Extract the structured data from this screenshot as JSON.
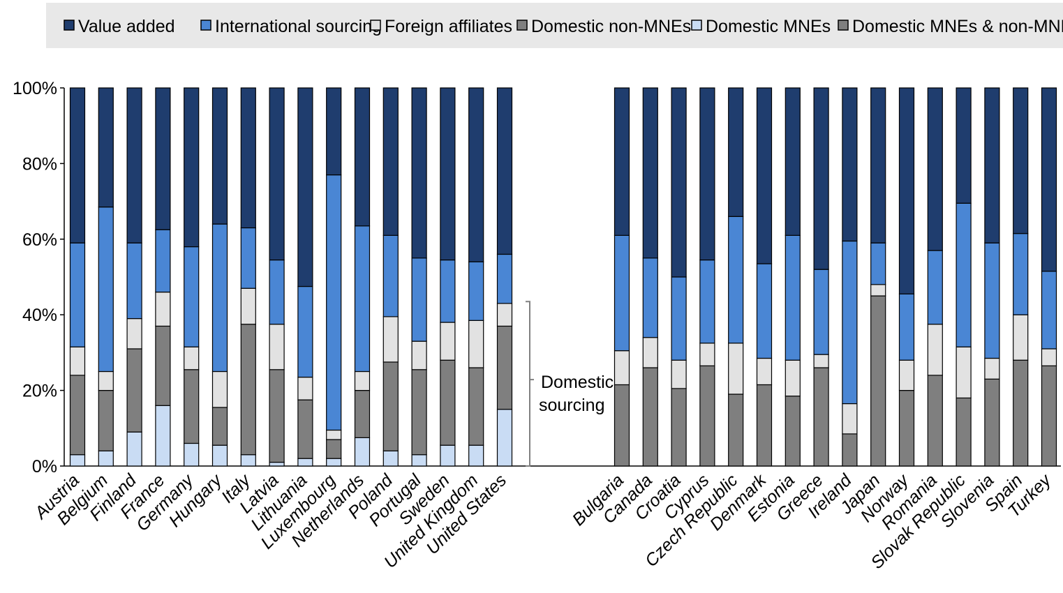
{
  "chart_data": {
    "type": "bar",
    "stacked": true,
    "percent": true,
    "ylim": [
      0,
      100
    ],
    "yticks": [
      "0%",
      "20%",
      "40%",
      "60%",
      "80%",
      "100%"
    ],
    "grid": false,
    "legend_position": "top",
    "series": [
      {
        "name": "Value added",
        "color": "#1f3d6e"
      },
      {
        "name": "International sourcing",
        "color": "#4a86d4"
      },
      {
        "name": "Foreign affiliates",
        "color": "#e2e2e2"
      },
      {
        "name": "Domestic non-MNEs",
        "color": "#7f7f7f"
      },
      {
        "name": "Domestic MNEs",
        "color": "#c9dcf4"
      },
      {
        "name": "Domestic MNEs & non-MNEs",
        "color": "#7f7f7f"
      }
    ],
    "groups": [
      {
        "categories": [
          "Austria",
          "Belgium",
          "Finland",
          "France",
          "Germany",
          "Hungary",
          "Italy",
          "Latvia",
          "Lithuania",
          "Luxembourg",
          "Netherlands",
          "Poland",
          "Portugal",
          "Sweden",
          "United Kingdom",
          "United States"
        ],
        "stacks": {
          "Domestic MNEs": [
            3,
            4,
            9,
            16,
            6,
            5.5,
            3,
            1,
            2,
            2,
            7.5,
            4,
            3,
            5.5,
            5.5,
            15
          ],
          "Domestic non-MNEs": [
            21,
            16,
            22,
            21,
            19.5,
            10,
            34.5,
            24.5,
            15.5,
            5,
            12.5,
            23.5,
            22.5,
            22.5,
            20.5,
            22
          ],
          "Foreign affiliates": [
            7.5,
            5,
            8,
            9,
            6,
            9.5,
            9.5,
            12,
            6,
            2.5,
            5,
            12,
            7.5,
            10,
            12.5,
            6
          ],
          "International sourcing": [
            27.5,
            43.5,
            20,
            16.5,
            26.5,
            39,
            16,
            17,
            24,
            67.5,
            38.5,
            21.5,
            22,
            16.5,
            15.5,
            13
          ],
          "Value added": [
            41,
            31.5,
            41,
            37.5,
            42,
            36,
            37,
            45.5,
            52.5,
            23,
            36.5,
            39,
            45,
            45.5,
            46,
            44
          ]
        }
      },
      {
        "categories": [
          "Bulgaria",
          "Canada",
          "Croatia",
          "Cyprus",
          "Czech Republic",
          "Denmark",
          "Estonia",
          "Greece",
          "Ireland",
          "Japan",
          "Norway",
          "Romania",
          "Slovak Republic",
          "Slovenia",
          "Spain",
          "Turkey"
        ],
        "stacks": {
          "Domestic MNEs & non-MNEs": [
            21.5,
            26,
            20.5,
            26.5,
            19,
            21.5,
            18.5,
            26,
            8.5,
            45,
            20,
            24,
            18,
            23,
            28,
            26.5
          ],
          "Foreign affiliates": [
            9,
            8,
            7.5,
            6,
            13.5,
            7,
            9.5,
            3.5,
            8,
            3,
            8,
            13.5,
            13.5,
            5.5,
            12,
            4.5
          ],
          "International sourcing": [
            30.5,
            21,
            22,
            22,
            33.5,
            25,
            33,
            22.5,
            43,
            11,
            17.5,
            19.5,
            38,
            30.5,
            21.5,
            20.5
          ],
          "Value added": [
            39,
            45,
            50,
            45.5,
            34,
            46.5,
            39,
            48,
            40.5,
            41,
            54.5,
            43,
            30.5,
            41,
            38.5,
            48.5
          ]
        }
      }
    ],
    "annotation": {
      "lines": [
        "Domestic",
        "sourcing"
      ]
    }
  }
}
